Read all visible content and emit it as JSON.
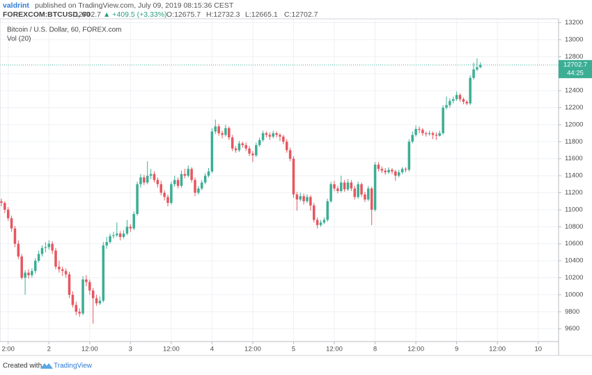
{
  "header": {
    "author": "valdrint",
    "published": "published on TradingView.com, July 09, 2019 08:15:36 CEST",
    "symbol": "FOREXCOM:BTCUSD, 60",
    "last": "12702.7",
    "change": "▲ +409.5 (+3.33%)",
    "open": "O:12675.7",
    "high": "H:12732.3",
    "low": "L:12665.1",
    "close": "C:12702.7"
  },
  "chart_data": {
    "type": "candlestick",
    "legend_title": "Bitcoin / U.S. Dollar, 60, FOREX.com",
    "indicator": "Vol (20)",
    "countdown": "44:25",
    "up_color": "#3bae94",
    "down_color": "#e65660",
    "grid": true,
    "ylim": [
      9450,
      13245
    ],
    "yticks": [
      9600,
      9800,
      10000,
      10200,
      10400,
      10600,
      10800,
      11000,
      11200,
      11400,
      11600,
      11800,
      12000,
      12200,
      12400,
      12600,
      12800,
      13000,
      13200
    ],
    "xlim": [
      -0.4,
      164
    ],
    "xticks": [
      {
        "value": 2,
        "label": "2:00"
      },
      {
        "value": 14,
        "label": "2"
      },
      {
        "value": 26,
        "label": "12:00"
      },
      {
        "value": 38,
        "label": "3"
      },
      {
        "value": 50,
        "label": "12:00"
      },
      {
        "value": 62,
        "label": "4"
      },
      {
        "value": 74,
        "label": "12:00"
      },
      {
        "value": 86,
        "label": "5"
      },
      {
        "value": 98,
        "label": "12:00"
      },
      {
        "value": 110,
        "label": "8"
      },
      {
        "value": 122,
        "label": "12:00"
      },
      {
        "value": 134,
        "label": "9"
      },
      {
        "value": 146,
        "label": "12:00"
      },
      {
        "value": 158,
        "label": "10"
      }
    ],
    "candles": [
      [
        11100,
        11130,
        11040,
        11080
      ],
      [
        11080,
        11100,
        10960,
        11000
      ],
      [
        11000,
        11030,
        10870,
        10900
      ],
      [
        10900,
        10930,
        10740,
        10780
      ],
      [
        10780,
        10810,
        10560,
        10600
      ],
      [
        10600,
        10640,
        10420,
        10450
      ],
      [
        10450,
        10480,
        10180,
        10200
      ],
      [
        10200,
        10290,
        10000,
        10260
      ],
      [
        10260,
        10300,
        10190,
        10230
      ],
      [
        10230,
        10310,
        10200,
        10280
      ],
      [
        10280,
        10430,
        10250,
        10400
      ],
      [
        10400,
        10520,
        10380,
        10480
      ],
      [
        10480,
        10580,
        10450,
        10550
      ],
      [
        10550,
        10620,
        10500,
        10560
      ],
      [
        10560,
        10640,
        10530,
        10600
      ],
      [
        10600,
        10630,
        10480,
        10520
      ],
      [
        10520,
        10550,
        10300,
        10330
      ],
      [
        10330,
        10400,
        10260,
        10300
      ],
      [
        10300,
        10330,
        10220,
        10280
      ],
      [
        10280,
        10310,
        10200,
        10240
      ],
      [
        10240,
        10270,
        9960,
        10000
      ],
      [
        10000,
        10040,
        9850,
        9880
      ],
      [
        9880,
        9920,
        9760,
        9800
      ],
      [
        9800,
        9840,
        9740,
        9780
      ],
      [
        9780,
        10220,
        9760,
        10180
      ],
      [
        10180,
        10230,
        10100,
        10150
      ],
      [
        10150,
        10180,
        10000,
        10050
      ],
      [
        10050,
        10080,
        9660,
        9960
      ],
      [
        9960,
        10000,
        9870,
        9900
      ],
      [
        9900,
        9980,
        9880,
        9930
      ],
      [
        9930,
        10620,
        9910,
        10580
      ],
      [
        10580,
        10680,
        10540,
        10620
      ],
      [
        10620,
        10720,
        10600,
        10690
      ],
      [
        10690,
        10740,
        10660,
        10700
      ],
      [
        10700,
        10850,
        10680,
        10720
      ],
      [
        10720,
        10750,
        10640,
        10680
      ],
      [
        10680,
        10760,
        10660,
        10720
      ],
      [
        10720,
        10880,
        10700,
        10800
      ],
      [
        10800,
        10830,
        10740,
        10780
      ],
      [
        10780,
        10980,
        10760,
        10950
      ],
      [
        10950,
        11330,
        10930,
        11300
      ],
      [
        11300,
        11420,
        11260,
        11380
      ],
      [
        11380,
        11410,
        11290,
        11320
      ],
      [
        11320,
        11570,
        11300,
        11400
      ],
      [
        11400,
        11480,
        11360,
        11420
      ],
      [
        11420,
        11450,
        11320,
        11350
      ],
      [
        11350,
        11380,
        11260,
        11300
      ],
      [
        11300,
        11340,
        11170,
        11200
      ],
      [
        11200,
        11230,
        11110,
        11150
      ],
      [
        11150,
        11180,
        11040,
        11080
      ],
      [
        11080,
        11330,
        11060,
        11300
      ],
      [
        11300,
        11400,
        11270,
        11350
      ],
      [
        11350,
        11380,
        11250,
        11280
      ],
      [
        11280,
        11460,
        11260,
        11420
      ],
      [
        11420,
        11480,
        11370,
        11400
      ],
      [
        11400,
        11520,
        11380,
        11480
      ],
      [
        11480,
        11500,
        11320,
        11350
      ],
      [
        11350,
        11380,
        11160,
        11200
      ],
      [
        11200,
        11280,
        11180,
        11250
      ],
      [
        11250,
        11350,
        11230,
        11320
      ],
      [
        11320,
        11430,
        11300,
        11400
      ],
      [
        11400,
        11490,
        11380,
        11450
      ],
      [
        11450,
        11960,
        11430,
        11920
      ],
      [
        11920,
        12060,
        11890,
        11980
      ],
      [
        11980,
        12010,
        11870,
        11900
      ],
      [
        11900,
        11930,
        11840,
        11880
      ],
      [
        11880,
        12000,
        11860,
        11960
      ],
      [
        11960,
        11980,
        11820,
        11850
      ],
      [
        11850,
        11880,
        11690,
        11720
      ],
      [
        11720,
        11750,
        11670,
        11700
      ],
      [
        11700,
        11810,
        11680,
        11780
      ],
      [
        11780,
        11800,
        11730,
        11760
      ],
      [
        11760,
        11790,
        11690,
        11720
      ],
      [
        11720,
        11750,
        11630,
        11660
      ],
      [
        11660,
        11690,
        11560,
        11640
      ],
      [
        11640,
        11790,
        11620,
        11760
      ],
      [
        11760,
        11850,
        11740,
        11820
      ],
      [
        11820,
        11930,
        11800,
        11900
      ],
      [
        11900,
        11920,
        11850,
        11880
      ],
      [
        11880,
        11910,
        11820,
        11860
      ],
      [
        11860,
        11930,
        11840,
        11900
      ],
      [
        11900,
        11920,
        11850,
        11880
      ],
      [
        11880,
        11900,
        11810,
        11860
      ],
      [
        11860,
        11880,
        11770,
        11800
      ],
      [
        11800,
        11830,
        11670,
        11700
      ],
      [
        11700,
        11730,
        11570,
        11600
      ],
      [
        11600,
        11630,
        11140,
        11180
      ],
      [
        11180,
        11210,
        10990,
        11120
      ],
      [
        11120,
        11200,
        11100,
        11160
      ],
      [
        11160,
        11190,
        11060,
        11100
      ],
      [
        11100,
        11180,
        11080,
        11150
      ],
      [
        11150,
        11170,
        10990,
        11050
      ],
      [
        11050,
        11080,
        10850,
        10880
      ],
      [
        10880,
        10910,
        10780,
        10820
      ],
      [
        10820,
        10880,
        10800,
        10850
      ],
      [
        10850,
        10910,
        10830,
        10880
      ],
      [
        10880,
        11130,
        10860,
        11100
      ],
      [
        11100,
        11330,
        11080,
        11300
      ],
      [
        11300,
        11340,
        11220,
        11250
      ],
      [
        11250,
        11280,
        11190,
        11220
      ],
      [
        11220,
        11400,
        11200,
        11320
      ],
      [
        11320,
        11350,
        11210,
        11240
      ],
      [
        11240,
        11360,
        11220,
        11320
      ],
      [
        11320,
        11350,
        11220,
        11250
      ],
      [
        11250,
        11280,
        11120,
        11150
      ],
      [
        11150,
        11330,
        11130,
        11300
      ],
      [
        11300,
        11320,
        11150,
        11180
      ],
      [
        11180,
        11210,
        11090,
        11120
      ],
      [
        11120,
        11280,
        11100,
        11250
      ],
      [
        11250,
        11270,
        10820,
        11000
      ],
      [
        11000,
        11560,
        10980,
        11530
      ],
      [
        11530,
        11560,
        11450,
        11480
      ],
      [
        11480,
        11510,
        11430,
        11460
      ],
      [
        11460,
        11490,
        11410,
        11440
      ],
      [
        11440,
        11500,
        11420,
        11470
      ],
      [
        11470,
        11490,
        11420,
        11450
      ],
      [
        11450,
        11470,
        11340,
        11400
      ],
      [
        11400,
        11470,
        11380,
        11440
      ],
      [
        11440,
        11500,
        11420,
        11480
      ],
      [
        11480,
        11500,
        11440,
        11470
      ],
      [
        11470,
        11830,
        11450,
        11800
      ],
      [
        11800,
        11920,
        11780,
        11880
      ],
      [
        11880,
        11990,
        11860,
        11950
      ],
      [
        11950,
        11980,
        11900,
        11940
      ],
      [
        11940,
        11960,
        11870,
        11900
      ],
      [
        11900,
        11920,
        11860,
        11890
      ],
      [
        11890,
        11930,
        11870,
        11900
      ],
      [
        11900,
        11920,
        11830,
        11880
      ],
      [
        11880,
        11910,
        11820,
        11870
      ],
      [
        11870,
        11930,
        11860,
        11900
      ],
      [
        11900,
        12230,
        11880,
        12200
      ],
      [
        12200,
        12330,
        12180,
        12230
      ],
      [
        12230,
        12310,
        12200,
        12280
      ],
      [
        12280,
        12330,
        12250,
        12300
      ],
      [
        12300,
        12390,
        12280,
        12350
      ],
      [
        12350,
        12370,
        12270,
        12300
      ],
      [
        12300,
        12320,
        12240,
        12270
      ],
      [
        12270,
        12290,
        12230,
        12250
      ],
      [
        12250,
        12580,
        12230,
        12550
      ],
      [
        12550,
        12730,
        12530,
        12650
      ],
      [
        12650,
        12780,
        12630,
        12675.7
      ],
      [
        12675.7,
        12732.3,
        12665.1,
        12702.7
      ]
    ]
  },
  "footer": {
    "created": "Created with",
    "brand": "TradingView"
  }
}
